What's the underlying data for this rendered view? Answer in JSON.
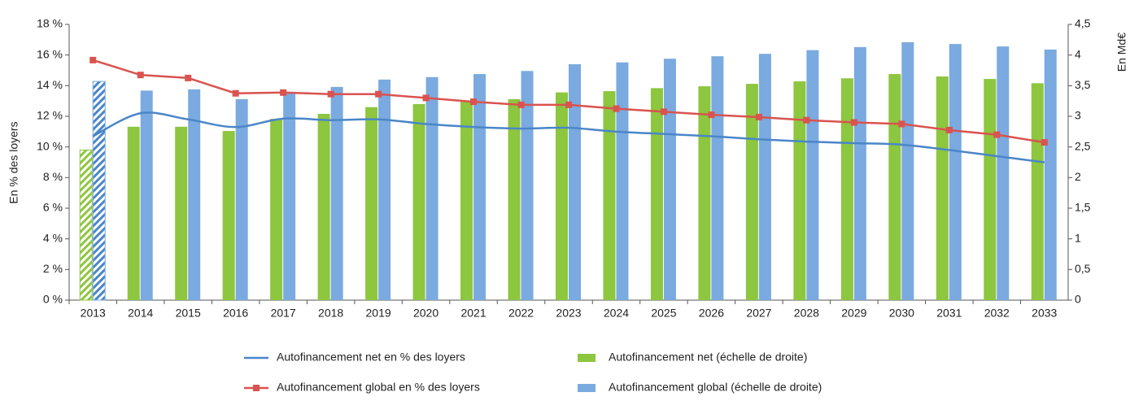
{
  "chart_data": {
    "type": "bar",
    "y_label": "En % des loyers",
    "y2_label": "En Md€",
    "categories": [
      "2013",
      "2014",
      "2015",
      "2016",
      "2017",
      "2018",
      "2019",
      "2020",
      "2021",
      "2022",
      "2023",
      "2024",
      "2025",
      "2026",
      "2027",
      "2028",
      "2029",
      "2030",
      "2031",
      "2032",
      "2033"
    ],
    "series": [
      {
        "name": "Autofinancement net en % des loyers",
        "type": "line",
        "color": "#4a86c8",
        "axis": "y",
        "values": [
          10.7,
          12.2,
          11.8,
          11.3,
          11.85,
          11.75,
          11.8,
          11.5,
          11.3,
          11.2,
          11.25,
          11.0,
          10.85,
          10.7,
          10.5,
          10.35,
          10.25,
          10.15,
          9.8,
          9.4,
          9.0
        ]
      },
      {
        "name": "Autofinancement global en % des loyers",
        "type": "line",
        "color": "#d9534f",
        "marker": "square",
        "axis": "y",
        "values": [
          15.67,
          14.7,
          14.5,
          13.5,
          13.55,
          13.45,
          13.45,
          13.2,
          12.95,
          12.75,
          12.75,
          12.5,
          12.3,
          12.1,
          11.95,
          11.75,
          11.6,
          11.5,
          11.1,
          10.8,
          10.3
        ]
      },
      {
        "name": "Autofinancement net (échelle de droite)",
        "type": "bar",
        "color": "#8dc63f",
        "axis": "y2",
        "values": [
          2.45,
          2.83,
          2.83,
          2.76,
          2.96,
          3.04,
          3.15,
          3.2,
          3.24,
          3.28,
          3.39,
          3.41,
          3.46,
          3.49,
          3.53,
          3.57,
          3.62,
          3.69,
          3.65,
          3.61,
          3.54
        ]
      },
      {
        "name": "Autofinancement global (échelle de droite)",
        "type": "bar",
        "color": "#7aaadf",
        "axis": "y2",
        "values": [
          3.57,
          3.42,
          3.44,
          3.28,
          3.4,
          3.48,
          3.6,
          3.64,
          3.69,
          3.74,
          3.85,
          3.88,
          3.94,
          3.98,
          4.02,
          4.08,
          4.13,
          4.21,
          4.18,
          4.14,
          4.09
        ]
      }
    ],
    "ylim": [
      0,
      18
    ],
    "yticks": [
      {
        "value": 0,
        "label": "0 %"
      },
      {
        "value": 2,
        "label": "2 %"
      },
      {
        "value": 4,
        "label": "4 %"
      },
      {
        "value": 6,
        "label": "6 %"
      },
      {
        "value": 8,
        "label": "8 %"
      },
      {
        "value": 10,
        "label": "10 %"
      },
      {
        "value": 12,
        "label": "12 %"
      },
      {
        "value": 14,
        "label": "14 %"
      },
      {
        "value": 16,
        "label": "16 %"
      },
      {
        "value": 18,
        "label": "18 %"
      }
    ],
    "y2lim": [
      0,
      4.5
    ],
    "y2ticks": [
      0,
      {
        "value": 0.5,
        "label": "0,5"
      },
      1,
      {
        "value": 1.5,
        "label": "1,5"
      },
      2,
      {
        "value": 2.5,
        "label": "2,5"
      },
      3,
      {
        "value": 3.5,
        "label": "3,5"
      },
      4,
      {
        "value": 4.5,
        "label": "4,5"
      }
    ],
    "grid": false
  }
}
